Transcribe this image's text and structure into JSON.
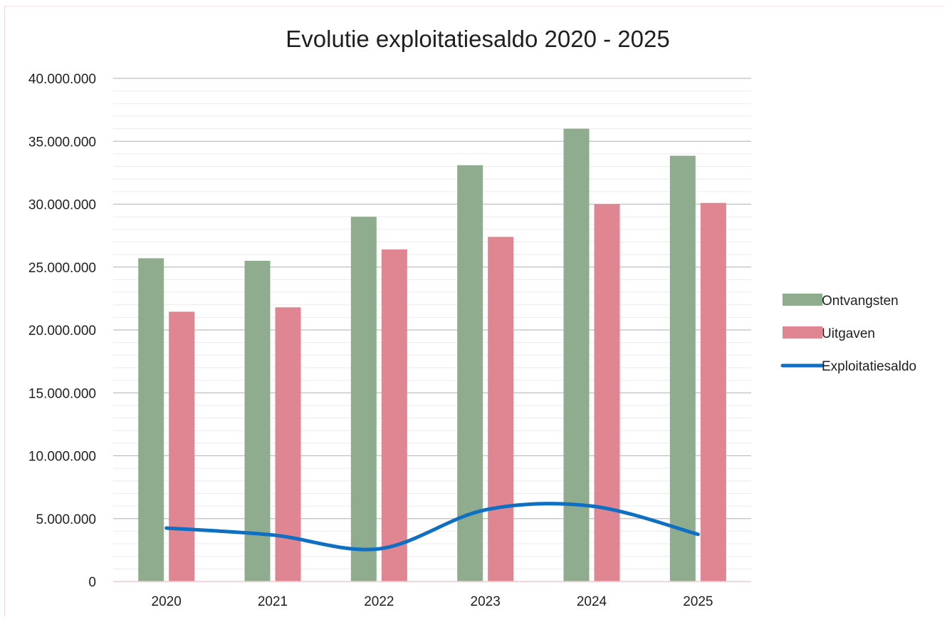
{
  "chart_data": {
    "type": "bar",
    "title": "Evolutie exploitatiesaldo 2020 - 2025",
    "xlabel": "",
    "ylabel": "",
    "categories": [
      "2020",
      "2021",
      "2022",
      "2023",
      "2024",
      "2025"
    ],
    "ylim": [
      0,
      40000000
    ],
    "y_ticks": [
      {
        "value": 0,
        "label": "0"
      },
      {
        "value": 5000000,
        "label": "5.000.000"
      },
      {
        "value": 10000000,
        "label": "10.000.000"
      },
      {
        "value": 15000000,
        "label": "15.000.000"
      },
      {
        "value": 20000000,
        "label": "20.000.000"
      },
      {
        "value": 25000000,
        "label": "25.000.000"
      },
      {
        "value": 30000000,
        "label": "30.000.000"
      },
      {
        "value": 35000000,
        "label": "35.000.000"
      },
      {
        "value": 40000000,
        "label": "40.000.000"
      }
    ],
    "minor_gridline_step": 1000000,
    "grid": true,
    "legend_position": "right",
    "series": [
      {
        "name": "Ontvangsten",
        "kind": "bar",
        "color": "#8fac8f",
        "values": [
          25700000,
          25500000,
          29000000,
          33100000,
          36000000,
          33850000
        ]
      },
      {
        "name": "Uitgaven",
        "kind": "bar",
        "color": "#e08592",
        "values": [
          21450000,
          21800000,
          26400000,
          27400000,
          30000000,
          30100000
        ]
      },
      {
        "name": "Exploitatiesaldo",
        "kind": "line",
        "smooth": true,
        "color": "#0f6fc2",
        "values": [
          4250000,
          3700000,
          2600000,
          5700000,
          6000000,
          3750000
        ]
      }
    ]
  }
}
